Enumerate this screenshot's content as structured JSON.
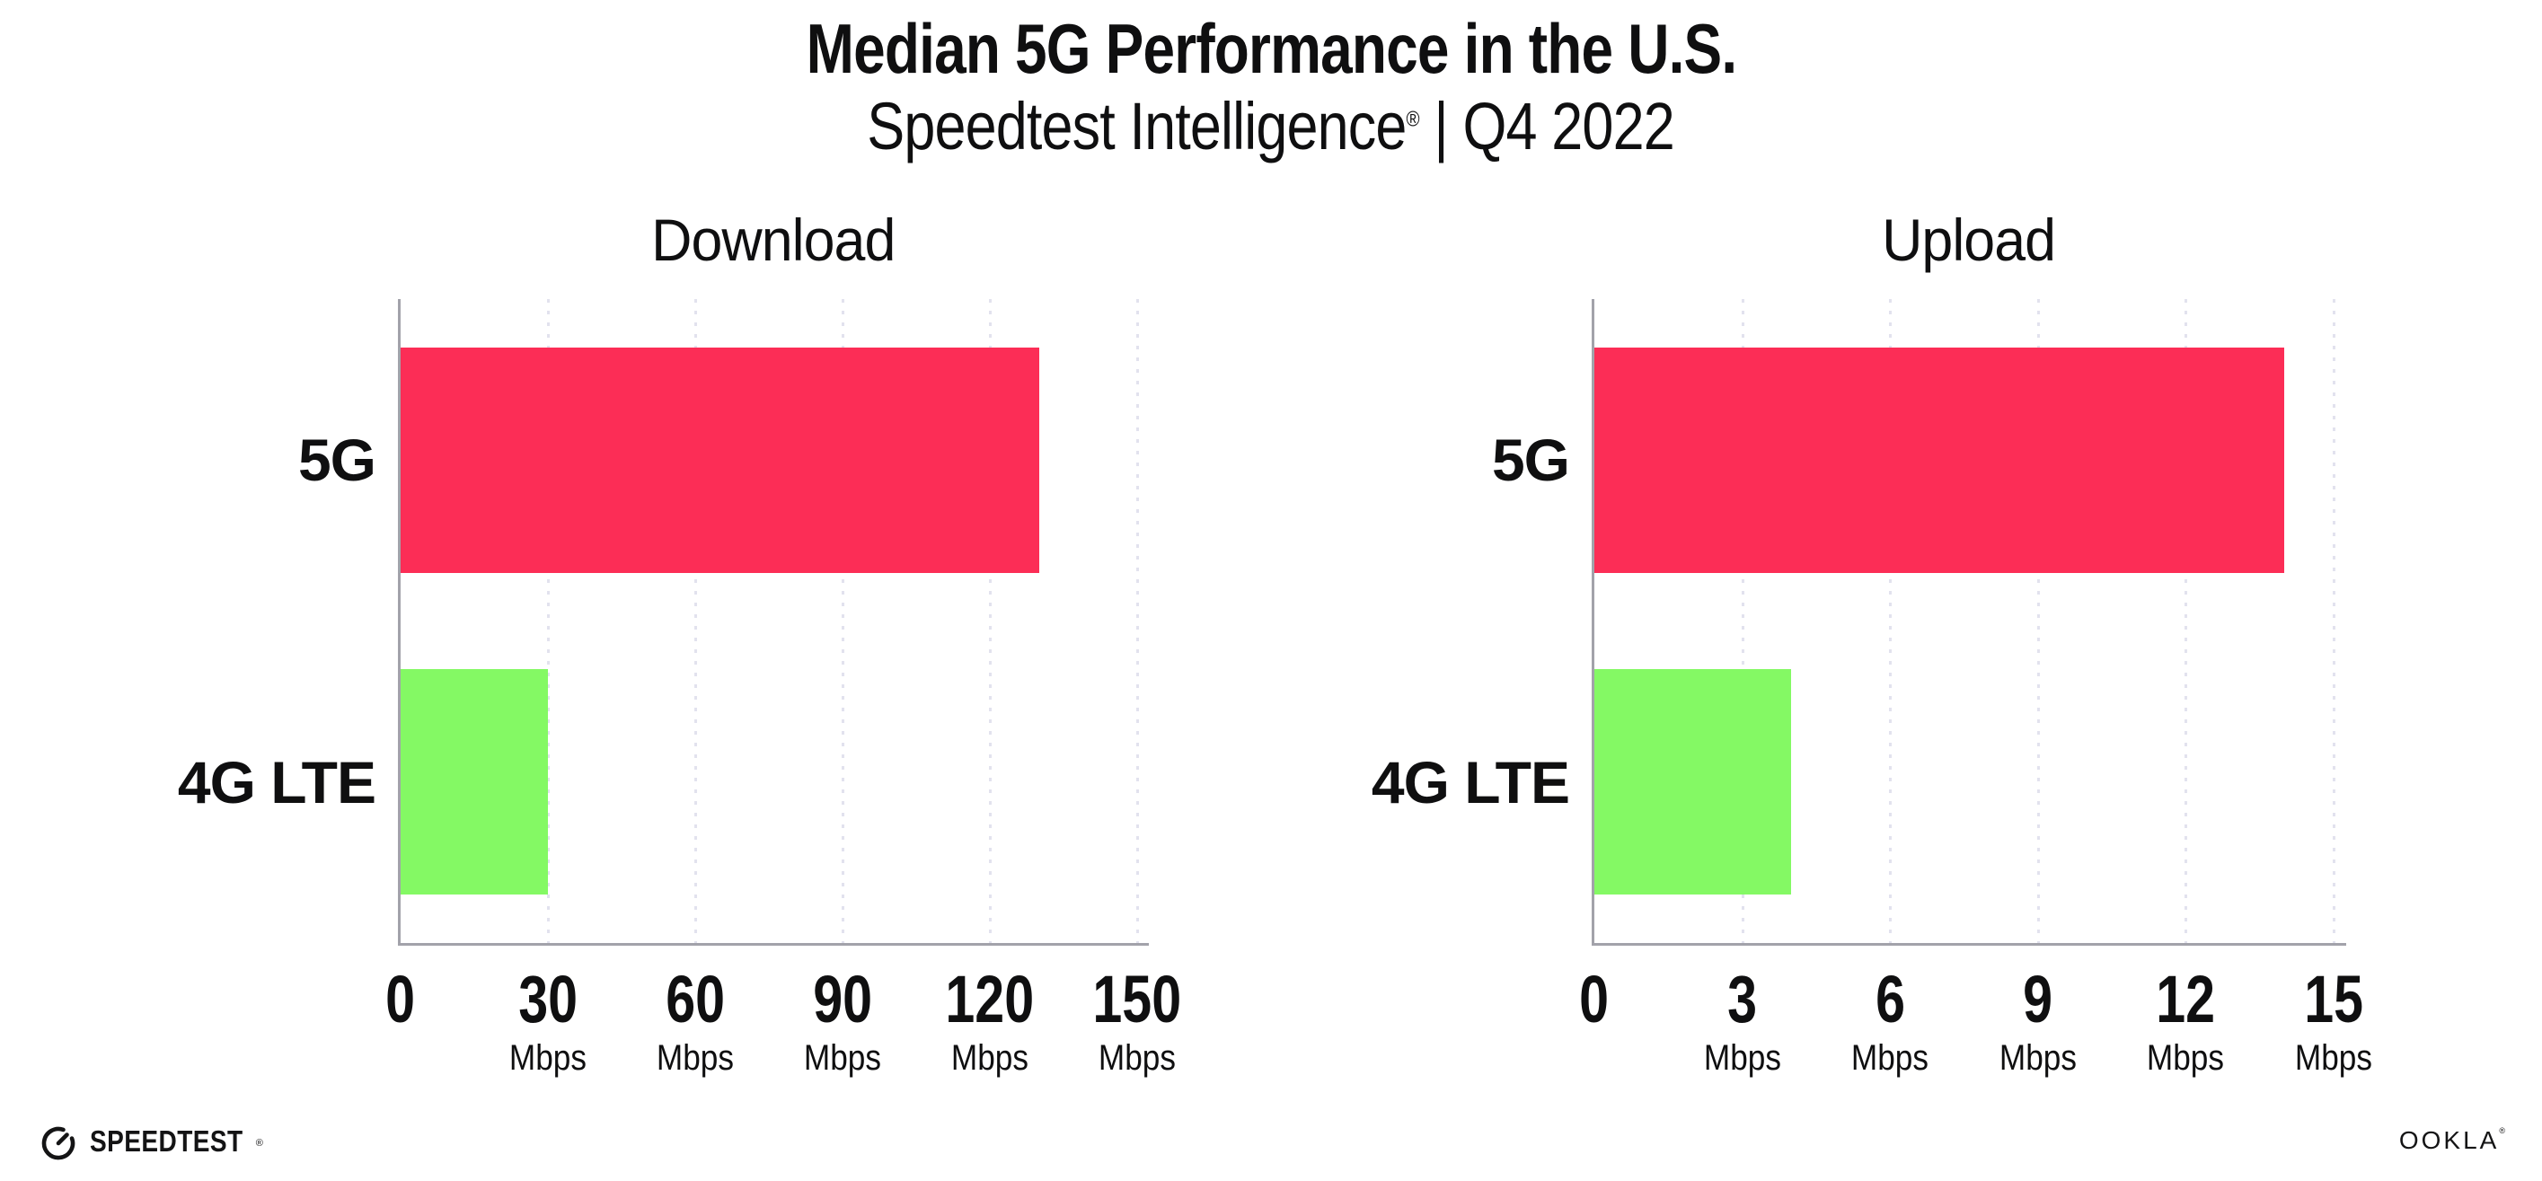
{
  "header": {
    "title": "Median 5G Performance in the U.S.",
    "subtitle_brand": "Speedtest Intelligence",
    "subtitle_reg": "®",
    "subtitle_rest": " | Q4 2022"
  },
  "colors": {
    "bar_5g": "#FC2D56",
    "bar_4g_lte": "#84F964",
    "gridline": "#E2E2EE",
    "axis": "#A2A2AA",
    "text": "#0F0F10"
  },
  "chart_data": [
    {
      "type": "bar",
      "orientation": "horizontal",
      "title": "Download",
      "categories": [
        "5G",
        "4G LTE"
      ],
      "values": [
        130,
        30
      ],
      "series_colors": [
        "#FC2D56",
        "#84F964"
      ],
      "unit_label": "Mbps",
      "xlabel": "",
      "ylabel": "",
      "xlim": [
        0,
        150
      ],
      "xticks": [
        0,
        30,
        60,
        90,
        120,
        150
      ],
      "grid": "dotted-vertical",
      "legend": "none"
    },
    {
      "type": "bar",
      "orientation": "horizontal",
      "title": "Upload",
      "categories": [
        "5G",
        "4G LTE"
      ],
      "values": [
        14,
        4
      ],
      "series_colors": [
        "#FC2D56",
        "#84F964"
      ],
      "unit_label": "Mbps",
      "xlabel": "",
      "ylabel": "",
      "xlim": [
        0,
        15
      ],
      "xticks": [
        0,
        3,
        6,
        9,
        12,
        15
      ],
      "grid": "dotted-vertical",
      "legend": "none"
    }
  ],
  "footer": {
    "speedtest_logo_text": "SPEEDTEST",
    "speedtest_reg": "®",
    "ookla_logo_text": "OOKLA",
    "ookla_reg": "®"
  }
}
